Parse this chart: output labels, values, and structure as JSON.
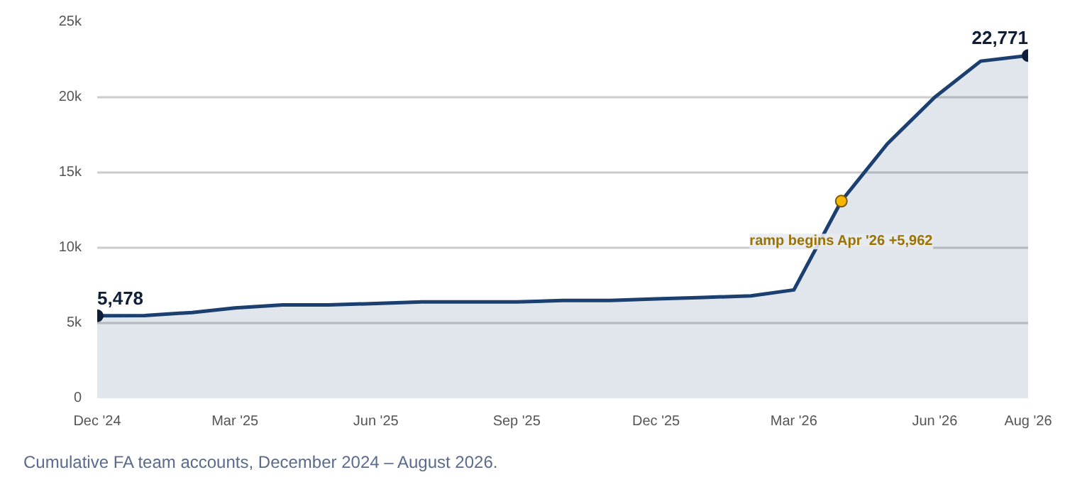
{
  "chart_data": {
    "type": "area",
    "x": [
      "2024-12",
      "2025-01",
      "2025-02",
      "2025-03",
      "2025-04",
      "2025-05",
      "2025-06",
      "2025-07",
      "2025-08",
      "2025-09",
      "2025-10",
      "2025-11",
      "2025-12",
      "2026-01",
      "2026-02",
      "2026-03",
      "2026-04",
      "2026-05",
      "2026-06",
      "2026-07",
      "2026-08"
    ],
    "series": [
      {
        "color": "#1b3f6e",
        "values": [
          5478,
          5500,
          5700,
          6000,
          6200,
          6200,
          6300,
          6400,
          6400,
          6400,
          6500,
          6500,
          6600,
          6700,
          6800,
          7200,
          13100,
          16900,
          20000,
          22400,
          22771
        ],
        "value_labels": [
          "5,478",
          null,
          null,
          null,
          null,
          null,
          null,
          null,
          null,
          null,
          null,
          null,
          null,
          null,
          null,
          null,
          null,
          null,
          null,
          null,
          "22,771"
        ]
      }
    ],
    "xlim": [
      "2024-12",
      "2026-08"
    ],
    "xticks": [
      {
        "value": "2024-12",
        "label": "Dec '24"
      },
      {
        "value": "2025-03",
        "label": "Mar '25"
      },
      {
        "value": "2025-06",
        "label": "Jun '25"
      },
      {
        "value": "2025-09",
        "label": "Sep '25"
      },
      {
        "value": "2025-12",
        "label": "Dec '25"
      },
      {
        "value": "2026-03",
        "label": "Mar '26"
      },
      {
        "value": "2026-06",
        "label": "Jun '26"
      },
      {
        "value": "2026-08",
        "label": "Aug '26"
      }
    ],
    "ylim": [
      0,
      25000
    ],
    "yticks": [
      0,
      {
        "value": 5000,
        "label": "5k"
      },
      {
        "value": 10000,
        "label": "10k"
      },
      {
        "value": 15000,
        "label": "15k"
      },
      {
        "value": 20000,
        "label": "20k"
      },
      {
        "value": 25000,
        "label": "25k"
      }
    ],
    "grid": "y",
    "annotations": [
      {
        "text": "ramp begins Apr '26 +5,962",
        "x": "2026-04",
        "y": 13100
      },
      "Cumulative FA team accounts, December 2024 – August 2026."
    ]
  }
}
